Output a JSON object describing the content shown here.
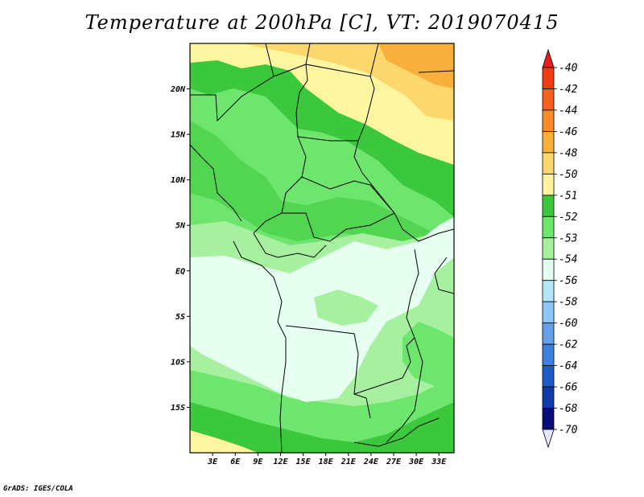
{
  "title": "Temperature at 200hPa [C], VT: 2019070415",
  "credit": "GrADS: IGES/COLA",
  "map": {
    "lon_range": [
      0,
      35
    ],
    "lat_range": [
      -20,
      25
    ],
    "lat_ticks": [
      {
        "value": 20,
        "label": "20N"
      },
      {
        "value": 15,
        "label": "15N"
      },
      {
        "value": 10,
        "label": "10N"
      },
      {
        "value": 5,
        "label": "5N"
      },
      {
        "value": 0,
        "label": "EQ"
      },
      {
        "value": -5,
        "label": "5S"
      },
      {
        "value": -10,
        "label": "10S"
      },
      {
        "value": -15,
        "label": "15S"
      }
    ],
    "lon_ticks": [
      {
        "value": 3,
        "label": "3E"
      },
      {
        "value": 6,
        "label": "6E"
      },
      {
        "value": 9,
        "label": "9E"
      },
      {
        "value": 12,
        "label": "12E"
      },
      {
        "value": 15,
        "label": "15E"
      },
      {
        "value": 18,
        "label": "18E"
      },
      {
        "value": 21,
        "label": "21E"
      },
      {
        "value": 24,
        "label": "24E"
      },
      {
        "value": 27,
        "label": "27E"
      },
      {
        "value": 30,
        "label": "30E"
      },
      {
        "value": 33,
        "label": "33E"
      }
    ]
  },
  "legend": {
    "levels": [
      "-40",
      "-42",
      "-44",
      "-46",
      "-48",
      "-50",
      "-51",
      "-52",
      "-53",
      "-54",
      "-56",
      "-58",
      "-60",
      "-62",
      "-64",
      "-66",
      "-68",
      "-70"
    ],
    "colors": [
      "#e61e1e",
      "#f03c14",
      "#f5601e",
      "#f78c28",
      "#f9af3c",
      "#fbd76e",
      "#fdf5a0",
      "#3cc83c",
      "#6ee66e",
      "#a6f0a0",
      "#e6fff0",
      "#b4e6fa",
      "#8cc8f5",
      "#64a0e6",
      "#3c82dc",
      "#1e5ac8",
      "#0f3ca5",
      "#0a0f78",
      "#e6e6ff"
    ]
  }
}
